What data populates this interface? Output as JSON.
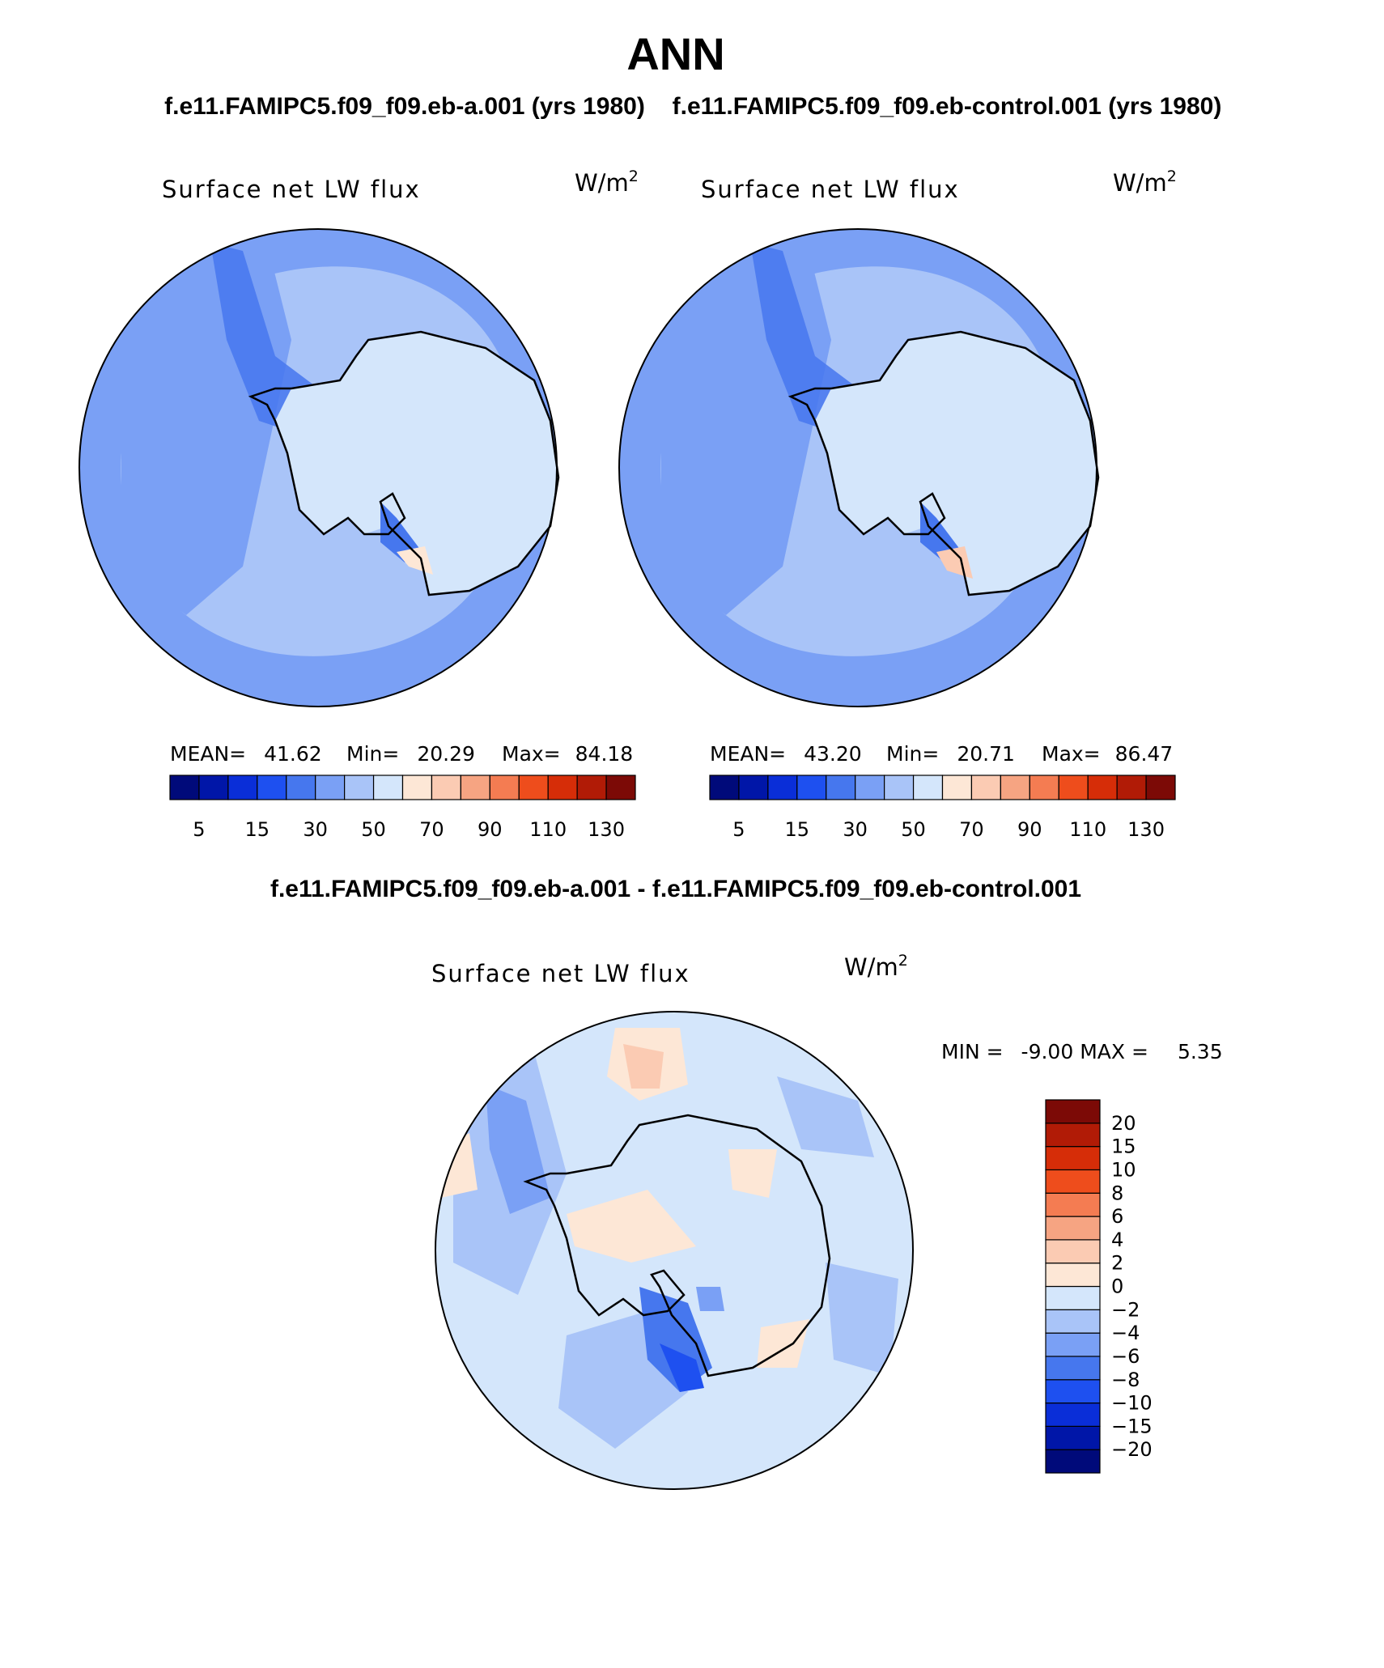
{
  "page_title": "ANN",
  "chart_data": [
    {
      "type": "heatmap",
      "projection": "south-polar-stereographic",
      "case_title": "f.e11.FAMIPC5.f09_f09.eb-a.001 (yrs 1980)",
      "variable": "Surface net LW flux",
      "units": "W/m",
      "units_exponent": "2",
      "stats": {
        "mean_label": "MEAN=",
        "mean": "41.62",
        "min_label": "Min=",
        "min": "20.29",
        "max_label": "Max=",
        "max": "84.18"
      },
      "colorbar": {
        "orientation": "horizontal",
        "colors": [
          "#000a7a",
          "#0016a8",
          "#0a2ed8",
          "#1e50f0",
          "#4677ee",
          "#7aa0f5",
          "#a9c4f8",
          "#d4e6fb",
          "#fde7d6",
          "#fbcbb3",
          "#f6a482",
          "#f47c52",
          "#ee4d1c",
          "#d62d08",
          "#b11b06",
          "#7c0a06"
        ],
        "ticks": [
          "5",
          "15",
          "30",
          "50",
          "70",
          "90",
          "110",
          "130"
        ]
      }
    },
    {
      "type": "heatmap",
      "projection": "south-polar-stereographic",
      "case_title": "f.e11.FAMIPC5.f09_f09.eb-control.001 (yrs 1980)",
      "variable": "Surface net LW flux",
      "units": "W/m",
      "units_exponent": "2",
      "stats": {
        "mean_label": "MEAN=",
        "mean": "43.20",
        "min_label": "Min=",
        "min": "20.71",
        "max_label": "Max=",
        "max": "86.47"
      },
      "colorbar": {
        "orientation": "horizontal",
        "colors": [
          "#000a7a",
          "#0016a8",
          "#0a2ed8",
          "#1e50f0",
          "#4677ee",
          "#7aa0f5",
          "#a9c4f8",
          "#d4e6fb",
          "#fde7d6",
          "#fbcbb3",
          "#f6a482",
          "#f47c52",
          "#ee4d1c",
          "#d62d08",
          "#b11b06",
          "#7c0a06"
        ],
        "ticks": [
          "5",
          "15",
          "30",
          "50",
          "70",
          "90",
          "110",
          "130"
        ]
      }
    },
    {
      "type": "heatmap",
      "projection": "south-polar-stereographic",
      "case_title": "f.e11.FAMIPC5.f09_f09.eb-a.001 - f.e11.FAMIPC5.f09_f09.eb-control.001",
      "variable": "Surface net LW flux",
      "units": "W/m",
      "units_exponent": "2",
      "stats": {
        "min_label": "MIN =",
        "min": "-9.00",
        "max_label": "MAX =",
        "max": "5.35"
      },
      "colorbar": {
        "orientation": "vertical",
        "colors": [
          "#000a7a",
          "#0016a8",
          "#0a2ed8",
          "#1e50f0",
          "#4677ee",
          "#7aa0f5",
          "#a9c4f8",
          "#d4e6fb",
          "#fde7d6",
          "#fbcbb3",
          "#f6a482",
          "#f47c52",
          "#ee4d1c",
          "#d62d08",
          "#b11b06",
          "#7c0a06"
        ],
        "ticks": [
          "-20",
          "-15",
          "-10",
          "-8",
          "-6",
          "-4",
          "-2",
          "0",
          "2",
          "4",
          "6",
          "8",
          "10",
          "15",
          "20"
        ]
      }
    }
  ]
}
